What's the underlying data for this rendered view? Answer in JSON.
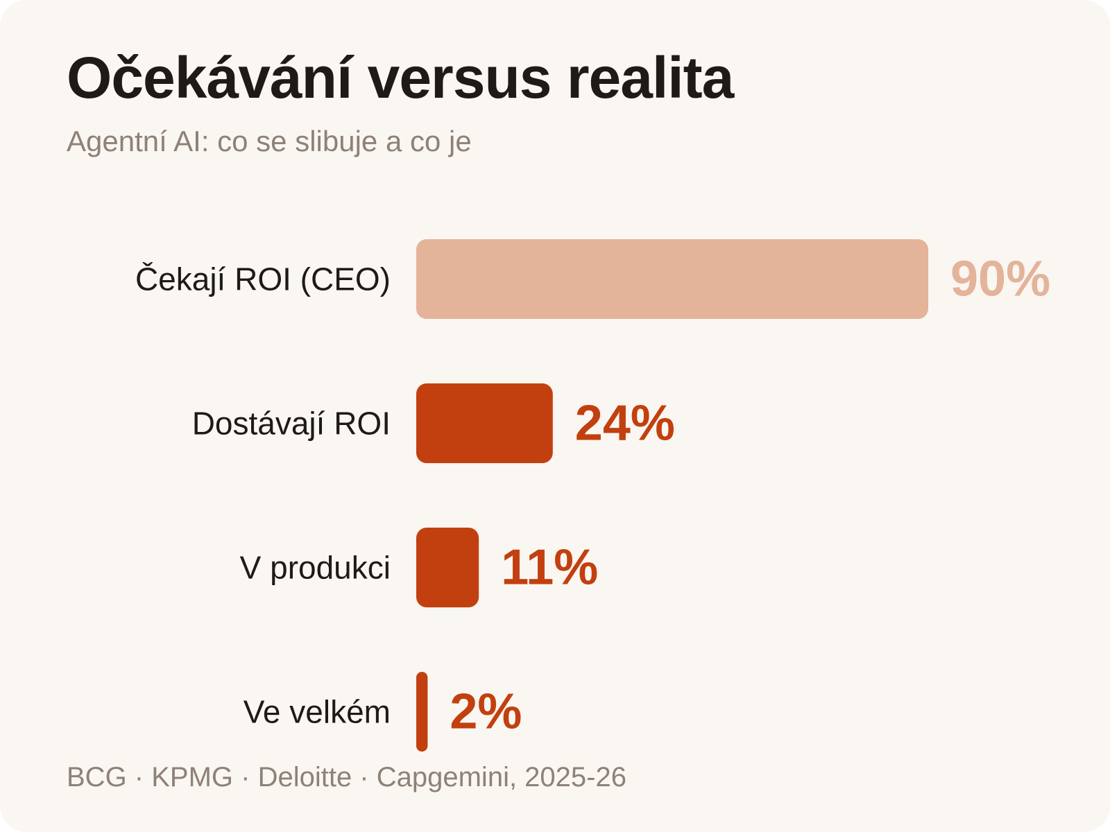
{
  "header": {
    "title": "Očekávání versus realita",
    "subtitle": "Agentní AI: co se slibuje a co je"
  },
  "footer": {
    "source": "BCG · KPMG · Deloitte · Capgemini, 2025-26"
  },
  "colors": {
    "background": "#faf6f1",
    "expectation": "#e3b39a",
    "reality": "#c2400f",
    "text": "#1d1a17",
    "muted": "#8d8178"
  },
  "chart_data": {
    "type": "bar",
    "orientation": "horizontal",
    "categories": [
      "Čekají ROI (CEO)",
      "Dostávají ROI",
      "V produkci",
      "Ve velkém"
    ],
    "values": [
      90,
      24,
      11,
      2
    ],
    "value_labels": [
      "90%",
      "24%",
      "11%",
      "2%"
    ],
    "bar_colors": [
      "#e3b39a",
      "#c2400f",
      "#c2400f",
      "#c2400f"
    ],
    "xlim": [
      0,
      90
    ],
    "grid": false
  }
}
